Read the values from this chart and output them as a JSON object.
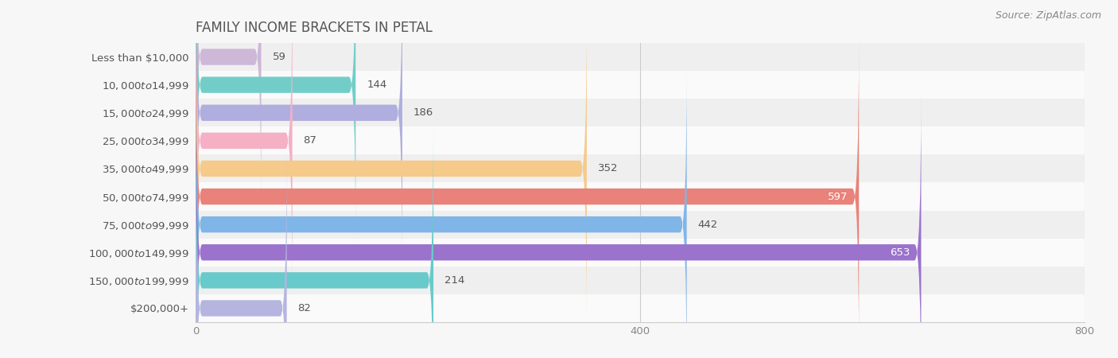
{
  "title": "FAMILY INCOME BRACKETS IN PETAL",
  "source": "Source: ZipAtlas.com",
  "categories": [
    "Less than $10,000",
    "$10,000 to $14,999",
    "$15,000 to $24,999",
    "$25,000 to $34,999",
    "$35,000 to $49,999",
    "$50,000 to $74,999",
    "$75,000 to $99,999",
    "$100,000 to $149,999",
    "$150,000 to $199,999",
    "$200,000+"
  ],
  "values": [
    59,
    144,
    186,
    87,
    352,
    597,
    442,
    653,
    214,
    82
  ],
  "bar_colors": [
    "#cdb8d8",
    "#72cdc8",
    "#b0aede",
    "#f5b0c5",
    "#f5ca8a",
    "#e8827a",
    "#80b5e8",
    "#9b72cc",
    "#68caca",
    "#b5b5e0"
  ],
  "bg_color": "#f7f7f7",
  "row_bg_even": "#efefef",
  "row_bg_odd": "#fafafa",
  "xlim": [
    0,
    800
  ],
  "xticks": [
    0,
    400,
    800
  ],
  "bar_height": 0.58,
  "title_fontsize": 12,
  "label_fontsize": 9.5,
  "value_fontsize": 9.5,
  "source_fontsize": 9,
  "value_inside_threshold": 500,
  "label_color": "#555555",
  "value_inside_color": "#ffffff",
  "value_outside_color": "#555555"
}
